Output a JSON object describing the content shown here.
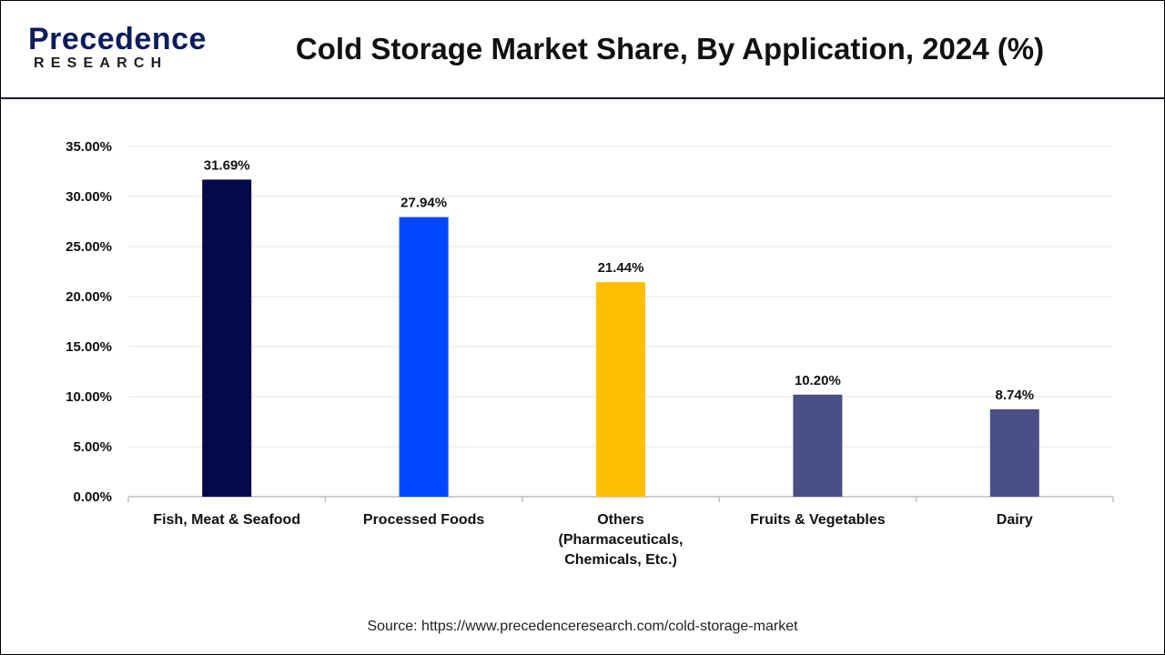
{
  "header": {
    "logo_main": "Precedence",
    "logo_sub": "RESEARCH",
    "title": "Cold Storage Market Share, By Application, 2024 (%)"
  },
  "footer": {
    "source": "Source: https://www.precedenceresearch.com/cold-storage-market"
  },
  "chart_data": {
    "type": "bar",
    "title": "Cold Storage Market Share, By Application, 2024 (%)",
    "categories": [
      [
        "Fish, Meat & Seafood"
      ],
      [
        "Processed Foods"
      ],
      [
        "Others",
        "(Pharmaceuticals,",
        "Chemicals, Etc.)"
      ],
      [
        "Fruits & Vegetables"
      ],
      [
        "Dairy"
      ]
    ],
    "values": [
      31.69,
      27.94,
      21.44,
      10.2,
      8.74
    ],
    "value_labels": [
      "31.69%",
      "27.94%",
      "21.44%",
      "10.20%",
      "8.74%"
    ],
    "colors": [
      "#020a4a",
      "#0047ff",
      "#ffbf00",
      "#4a4f86",
      "#4a4f86"
    ],
    "ylim": [
      0,
      35
    ],
    "yticks": [
      0,
      5,
      10,
      15,
      20,
      25,
      30,
      35
    ],
    "ytick_labels": [
      "0.00%",
      "5.00%",
      "10.00%",
      "15.00%",
      "20.00%",
      "25.00%",
      "30.00%",
      "35.00%"
    ],
    "grid": true,
    "legend": "none"
  }
}
